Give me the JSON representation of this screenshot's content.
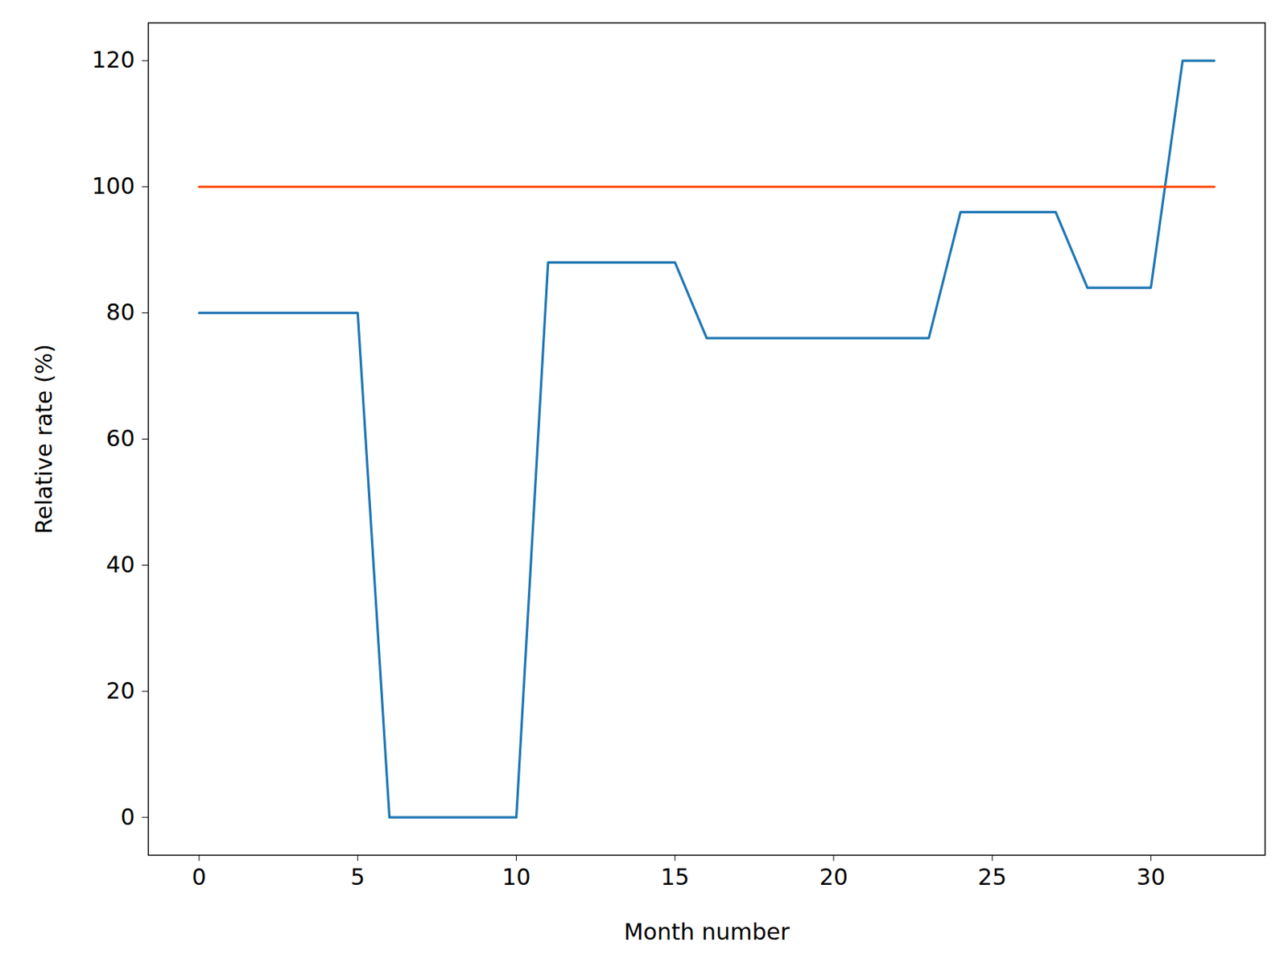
{
  "chart_data": {
    "type": "line",
    "x_label": "Month number",
    "y_label": "Relative rate (%)",
    "x": [
      0,
      1,
      2,
      3,
      4,
      5,
      6,
      7,
      8,
      9,
      10,
      11,
      12,
      13,
      14,
      15,
      16,
      17,
      18,
      19,
      20,
      21,
      22,
      23,
      24,
      25,
      26,
      27,
      28,
      29,
      30,
      31,
      32
    ],
    "series": [
      {
        "color": "#1f77b4",
        "values": [
          80,
          80,
          80,
          80,
          80,
          80,
          0,
          0,
          0,
          0,
          0,
          88,
          88,
          88,
          88,
          88,
          76,
          76,
          76,
          76,
          76,
          76,
          76,
          76,
          96,
          96,
          96,
          96,
          84,
          84,
          84,
          120,
          120
        ]
      },
      {
        "color": "#ff4500",
        "values": [
          100,
          100,
          100,
          100,
          100,
          100,
          100,
          100,
          100,
          100,
          100,
          100,
          100,
          100,
          100,
          100,
          100,
          100,
          100,
          100,
          100,
          100,
          100,
          100,
          100,
          100,
          100,
          100,
          100,
          100,
          100,
          100,
          100
        ]
      }
    ],
    "xlim": [
      -1.6,
      33.6
    ],
    "ylim": [
      -6,
      126
    ],
    "xticks": [
      0,
      5,
      10,
      15,
      20,
      25,
      30
    ],
    "yticks": [
      0,
      20,
      40,
      60,
      80,
      100,
      120
    ],
    "grid": false
  }
}
